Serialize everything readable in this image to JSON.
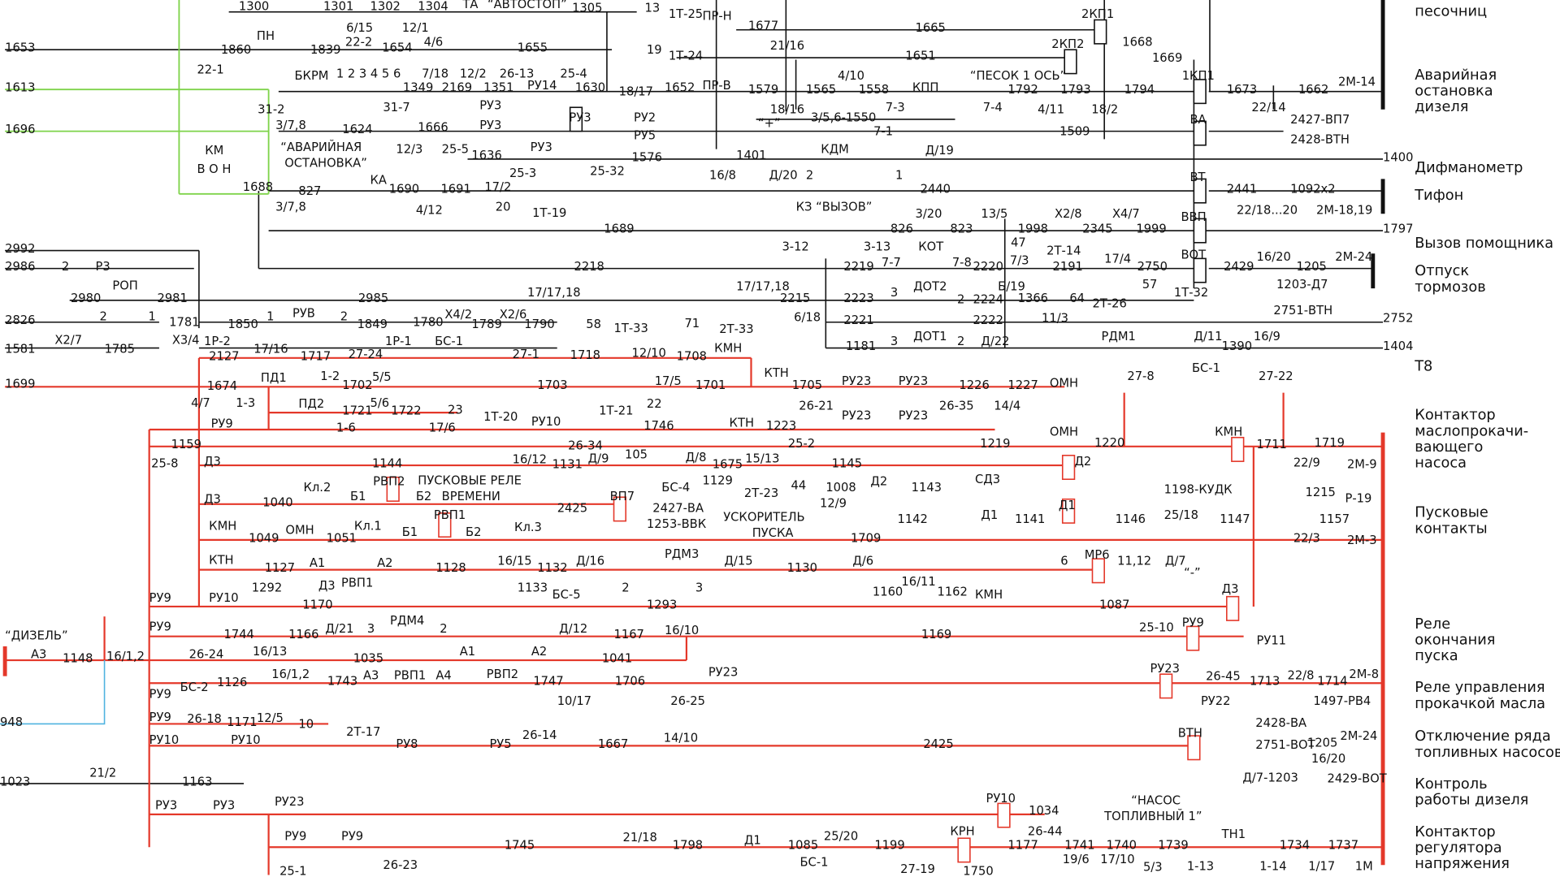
{
  "top_labels": [
    "1300",
    "1301",
    "1302",
    "1304",
    "ТА",
    "“АВТОСТОП”",
    "1305",
    "6/15",
    "12/1",
    "13",
    "1Т-25",
    "ПР-Н",
    "1677",
    "21/16",
    "1665",
    "2КП1",
    "1668",
    "1653",
    "ПН",
    "1860",
    "1839",
    "22-2",
    "4/6",
    "1654",
    "1655",
    "22-1",
    "19",
    "1Т-24",
    "1651",
    "2КП2",
    "1669",
    "1613",
    "БКРМ",
    "1 2 3 4 5 6",
    "7/18",
    "12/2",
    "26-13",
    "25-4",
    "1349",
    "2169",
    "1351",
    "РУ14",
    "1630",
    "18/17",
    "1652",
    "ПР-В",
    "1579",
    "4/10",
    "1565",
    "1558",
    "КПП",
    "“ПЕСОК 1 ОСЬ”",
    "1792",
    "1793",
    "1794",
    "1КП1",
    "1673",
    "1662",
    "2М-14",
    "31-2",
    "31-7",
    "РУ3",
    "18/16",
    "7-3",
    "7-4",
    "4/11",
    "18/2",
    "22/14",
    "ВА",
    "2427-ВП7",
    "“+”",
    "3/5,6-1550",
    "РУ3",
    "РУ2",
    "3/7,8",
    "1696",
    "1624",
    "1666",
    "РУ3",
    "7-1",
    "1509",
    "2428-ВТН",
    "РУ5",
    "“АВАРИЙНАЯ",
    "ОСТАНОВКА”",
    "КМ",
    "12/3",
    "25-5",
    "РУ3",
    "КДМ",
    "Д/19",
    "1636",
    "1576",
    "1401",
    "1400",
    "В О Н",
    "25-3",
    "25-32",
    "16/8",
    "Д/20",
    "2",
    "1",
    "КА",
    "ВТ",
    "1688",
    "827",
    "1690",
    "1691",
    "17/2",
    "2440",
    "2441",
    "1092х2",
    "3/7,8",
    "4/12",
    "20",
    "1Т-19",
    "КЗ “ВЫЗОВ”",
    "3/20",
    "13/5",
    "Х2/8",
    "Х4/7",
    "22/18...20",
    "2М-18,19",
    "ВВП",
    "1689",
    "826",
    "823",
    "1998",
    "2345",
    "1999",
    "1797",
    "47",
    "2Т-14",
    "3-12",
    "3-13",
    "КОТ",
    "2992",
    "ВОТ",
    "2986",
    "2",
    "Р3",
    "2218",
    "2219",
    "7-7",
    "7-8",
    "2220",
    "7/3",
    "2191",
    "17/4",
    "2750",
    "2429",
    "16/20",
    "1205",
    "2М-24",
    "1203-Д7",
    "57",
    "1Т-32",
    "РОП",
    "17/17,18",
    "17/17,18",
    "ДОТ2",
    "Б/19",
    "2980",
    "2981",
    "2985",
    "2215",
    "2223",
    "3",
    "2",
    "2224",
    "1366",
    "64",
    "2Т-26",
    "2751-ВТН",
    "2",
    "1",
    "РУВ",
    "1",
    "2",
    "Х4/2",
    "Х2/6",
    "6/18",
    "11/3",
    "2826",
    "1781",
    "1850",
    "1849",
    "1780",
    "1789",
    "1790",
    "58",
    "1Т-33",
    "2221",
    "2222",
    "2752",
    "РДМ1",
    "ДОТ1",
    "Д/11",
    "16/9",
    "Х2/7",
    "Х3/4",
    "1Р-2",
    "1Р-1",
    "3",
    "2",
    "Д/22",
    "1181",
    "1390",
    "1404",
    "1581",
    "1785"
  ],
  "bottom_labels": [
    "2127",
    "17/16",
    "1717",
    "27-24",
    "БС-1",
    "27-1",
    "1718",
    "12/10",
    "1708",
    "71",
    "2Т-33",
    "КМН",
    "КТН",
    "1699",
    "1674",
    "ПД1",
    "1-2",
    "1702",
    "5/5",
    "1703",
    "17/5",
    "1701",
    "1705",
    "РУ23",
    "РУ23",
    "1226",
    "1227",
    "ОМН",
    "27-8",
    "БС-1",
    "27-22",
    "4/7",
    "1-3",
    "ПД2",
    "1721",
    "5/6",
    "1722",
    "23",
    "1Т-20",
    "1Т-21",
    "22",
    "26-21",
    "РУ23",
    "РУ23",
    "26-35",
    "14/4",
    "1-6",
    "17/6",
    "РУ9",
    "РУ10",
    "1746",
    "КТН",
    "1223",
    "ОМН",
    "КМН",
    "1159",
    "26-34",
    "25-2",
    "1219",
    "1220",
    "1711",
    "1719",
    "25-8",
    "Д3",
    "1144",
    "16/12",
    "1131",
    "Д/9",
    "105",
    "Д/8",
    "1675",
    "15/13",
    "1145",
    "Д2",
    "22/9",
    "2М-9",
    "РВП2",
    "ПУСКОВЫЕ РЕЛЕ",
    "ВРЕМЕНИ",
    "1129",
    "БС-4",
    "2Т-23",
    "44",
    "1008",
    "Д2",
    "1143",
    "СД3",
    "Кл.2",
    "1198-КУДК",
    "1215",
    "Р-19",
    "Д3",
    "1040",
    "Б1",
    "Б2",
    "2425",
    "ВП7",
    "2427-ВА",
    "12/9",
    "1253-ВВК",
    "УСКОРИТЕЛЬ",
    "ПУСКА",
    "1142",
    "Д1",
    "1141",
    "Д1",
    "1146",
    "25/18",
    "1147",
    "1157",
    "РВП1",
    "КМН",
    "ОМН",
    "Кл.1",
    "Кл.3",
    "1049",
    "1051",
    "Б1",
    "Б2",
    "1709",
    "22/3",
    "2М-3",
    "КТН",
    "1127",
    "А1",
    "А2",
    "1128",
    "16/15",
    "1132",
    "Д/16",
    "РДМ3",
    "Д/15",
    "1130",
    "Д/6",
    "6",
    "МР6",
    "11,12",
    "Д/7",
    "“-”",
    "1292",
    "Д3",
    "РВП1",
    "1133",
    "БС-5",
    "2",
    "3",
    "16/11",
    "1160",
    "1162",
    "КМН",
    "Д3",
    "РУ9",
    "РУ10",
    "1170",
    "1293",
    "1087",
    "РУ9",
    "1744",
    "1166",
    "Д/21",
    "3",
    "РДМ4",
    "2",
    "Д/12",
    "1167",
    "16/10",
    "1169",
    "25-10",
    "РУ9",
    "РУ11",
    "“ДИЗЕЛЬ”",
    "А3",
    "1148",
    "16/1,2",
    "26-24",
    "16/13",
    "1035",
    "А1",
    "А2",
    "1041",
    "РВП2",
    "РУ23",
    "РУ23",
    "26-45",
    "1713",
    "22/8",
    "1714",
    "2М-8",
    "БС-2",
    "1126",
    "16/1,2",
    "1743",
    "А3",
    "РВП1",
    "А4",
    "1747",
    "1706",
    "РУ9",
    "10/17",
    "26-25",
    "РУ22",
    "1497-РВ4",
    "РУ9",
    "26-18",
    "1171",
    "12/5",
    "10",
    "2Т-17",
    "948",
    "2428-ВА",
    "ВТН",
    "РУ10",
    "РУ10",
    "РУ8",
    "РУ5",
    "26-14",
    "1667",
    "14/10",
    "2425",
    "1205",
    "2М-24",
    "2751-ВОТ",
    "16/20",
    "Д/7-1203",
    "2429-ВОТ",
    "21/2",
    "1023",
    "1163",
    "РУ3",
    "РУ3",
    "РУ23",
    "РУ10",
    "1034",
    "“НАСОС",
    "ТОПЛИВНЫЙ 1”",
    "26-44",
    "РУ9",
    "РУ9",
    "1745",
    "21/18",
    "1798",
    "Д1",
    "1085",
    "25/20",
    "1199",
    "КРН",
    "1177",
    "1741",
    "1740",
    "1739",
    "ТН1",
    "1734",
    "1737",
    "БС-1",
    "19/6",
    "17/10",
    "5/3",
    "1-13",
    "1-14",
    "1/17",
    "1М",
    "25-1",
    "26-23",
    "27-19",
    "1750"
  ],
  "descriptions": [
    [
      "песочниц"
    ],
    [
      "Аварийная",
      "остановка",
      "дизеля"
    ],
    [
      "Дифманометр"
    ],
    [
      "Тифон"
    ],
    [
      "Вызов помощника"
    ],
    [
      "Отпуск",
      "тормозов"
    ],
    [
      "Т8"
    ],
    [
      "Контактор",
      "маслопрокачи-",
      "вающего",
      "насоса"
    ],
    [
      "Пусковые",
      "контакты"
    ],
    [
      "Реле",
      "окончания",
      "пуска"
    ],
    [
      "Реле управления",
      "прокачкой масла"
    ],
    [
      "Отключение ряда",
      "топливных насосов"
    ],
    [
      "Контроль",
      "работы дизеля"
    ],
    [
      "Контактор",
      "регулятора",
      "напряжения"
    ]
  ]
}
